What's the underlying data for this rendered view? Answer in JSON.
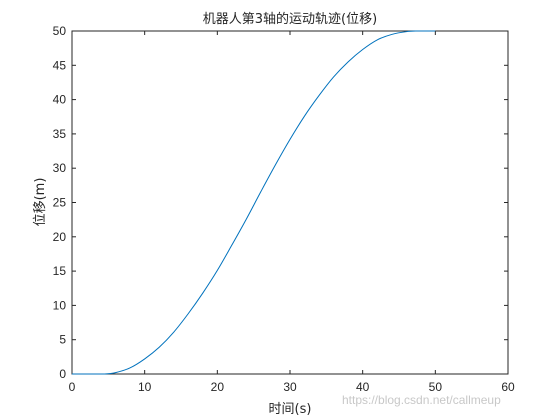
{
  "chart_data": {
    "type": "line",
    "title": "机器人第3轴的运动轨迹(位移)",
    "xlabel": "时间(s)",
    "ylabel": "位移(m)",
    "xlim": [
      0,
      60
    ],
    "ylim": [
      0,
      50
    ],
    "xticks": [
      0,
      10,
      20,
      30,
      40,
      50,
      60
    ],
    "yticks": [
      0,
      5,
      10,
      15,
      20,
      25,
      30,
      35,
      40,
      45,
      50
    ],
    "grid": false,
    "series": [
      {
        "color": "#0072bd",
        "x": [
          0,
          2,
          4.5,
          6,
          8,
          10,
          12,
          14,
          16,
          18,
          20,
          22,
          24,
          26,
          28,
          30,
          32,
          34,
          36,
          38,
          40,
          42,
          44,
          46,
          47.5,
          49,
          50
        ],
        "y": [
          0,
          0,
          0,
          0.2,
          0.9,
          2.2,
          3.9,
          6.1,
          8.8,
          11.8,
          15.1,
          18.8,
          22.6,
          26.6,
          30.5,
          34.2,
          37.6,
          40.6,
          43.3,
          45.5,
          47.3,
          48.7,
          49.5,
          49.9,
          50,
          50,
          50
        ]
      }
    ]
  },
  "watermark": "https://blog.csdn.net/callmeup"
}
